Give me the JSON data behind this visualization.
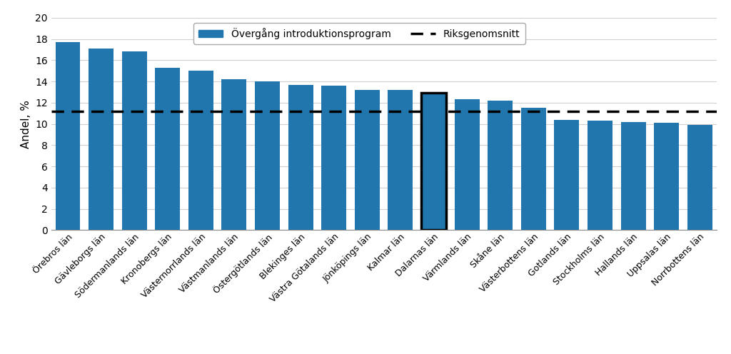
{
  "categories": [
    "Örebros län",
    "Gävleborgs län",
    "Södermanlands län",
    "Kronobergs län",
    "Västernorrlands län",
    "Västmanlands län",
    "Östergötlands län",
    "Blekinges län",
    "Västra Götalands län",
    "Jönköpings län",
    "Kalmar län",
    "Dalarnas län",
    "Värmlands län",
    "Skåne län",
    "Västerbottens län",
    "Gotlands län",
    "Stockholms län",
    "Hallands län",
    "Uppsalas län",
    "Norrbottens län"
  ],
  "values": [
    17.7,
    17.1,
    16.8,
    15.3,
    15.0,
    14.2,
    14.0,
    13.7,
    13.6,
    13.2,
    13.2,
    12.9,
    12.3,
    12.2,
    11.5,
    10.4,
    10.3,
    10.2,
    10.1,
    9.9
  ],
  "highlighted_index": 11,
  "riksgenomsnitt": 11.2,
  "bar_color": "#2176AE",
  "highlight_edge_color": "#000000",
  "dashed_line_color": "#000000",
  "ylabel": "Andel, %",
  "ylim": [
    0,
    20
  ],
  "yticks": [
    0,
    2,
    4,
    6,
    8,
    10,
    12,
    14,
    16,
    18,
    20
  ],
  "legend_bar_label": "Övergång introduktionsprogram",
  "legend_line_label": "Riksgenomsnitt",
  "background_color": "#ffffff",
  "grid_color": "#d0d0d0",
  "figsize": [
    10.24,
    4.96
  ],
  "dpi": 100
}
